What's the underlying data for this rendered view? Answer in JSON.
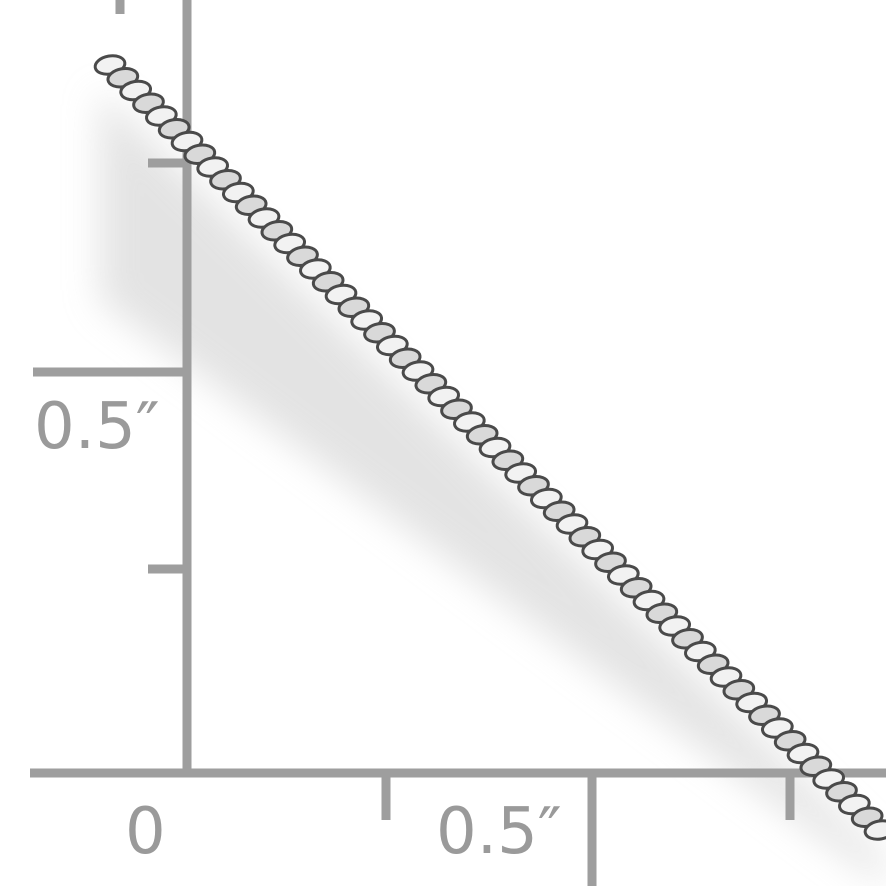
{
  "ruler": {
    "vertical_labels": [
      "0.5″"
    ],
    "horizontal_labels": [
      "0",
      "0.5″"
    ]
  }
}
